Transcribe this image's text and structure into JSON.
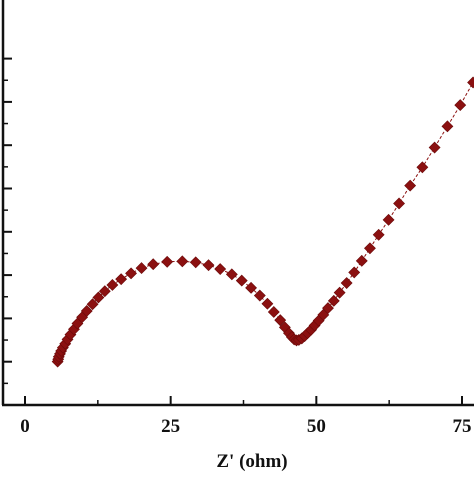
{
  "chart_data": {
    "type": "scatter",
    "title": "",
    "xlabel": "Z' (ohm)",
    "ylabel": "",
    "xlim": [
      0,
      80
    ],
    "xticks": [
      0,
      25,
      50,
      75
    ],
    "xtick_labels": [
      "0",
      "25",
      "50",
      "75"
    ],
    "y_tick_count": 9,
    "grid": false,
    "legend": "none",
    "marker": "diamond",
    "series": [
      {
        "color": "#8b1010",
        "line_style": "dashed",
        "x": [
          5.6,
          5.7,
          5.8,
          6.0,
          6.2,
          6.5,
          6.9,
          7.3,
          7.8,
          8.4,
          9.0,
          9.8,
          10.6,
          11.6,
          12.6,
          13.7,
          15.0,
          16.5,
          18.2,
          20.0,
          22.0,
          24.4,
          27.0,
          29.3,
          31.5,
          33.5,
          35.5,
          37.2,
          38.8,
          40.3,
          41.6,
          42.7,
          43.8,
          44.6,
          45.3,
          45.8,
          46.2,
          46.6,
          47.0,
          47.5,
          48.0,
          48.5,
          49.1,
          49.7,
          50.4,
          51.2,
          52.0,
          53.0,
          54.0,
          55.2,
          56.5,
          57.8,
          59.2,
          60.7,
          62.4,
          64.2,
          66.1,
          68.2,
          70.3,
          72.5,
          74.7,
          76.9
        ],
        "y": [
          1.0,
          1.5,
          2.0,
          2.6,
          3.2,
          3.9,
          4.7,
          5.6,
          6.6,
          7.7,
          8.9,
          10.2,
          11.5,
          12.9,
          14.3,
          15.6,
          16.9,
          18.1,
          19.3,
          20.4,
          21.2,
          21.7,
          21.8,
          21.6,
          21.0,
          20.2,
          19.1,
          17.8,
          16.3,
          14.7,
          13.0,
          11.3,
          9.6,
          8.1,
          6.9,
          6.1,
          5.6,
          5.4,
          5.5,
          5.8,
          6.3,
          6.9,
          7.6,
          8.5,
          9.5,
          10.7,
          12.1,
          13.6,
          15.3,
          17.3,
          19.5,
          21.9,
          24.5,
          27.3,
          30.4,
          33.8,
          37.5,
          41.3,
          45.4,
          49.8,
          54.2,
          58.9
        ],
        "ylim": [
          -8,
          76
        ]
      }
    ]
  }
}
